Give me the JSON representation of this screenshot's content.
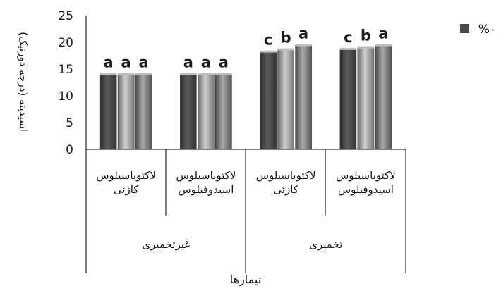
{
  "chart_data": {
    "type": "bar",
    "title": "",
    "ylabel": "اسیدیته (درجه دورنیک)",
    "xlabel": "تیمارها",
    "ylim": [
      0,
      25
    ],
    "yticks": [
      "0",
      "5",
      "10",
      "15",
      "20",
      "25"
    ],
    "grid": false,
    "legend_position": "top-right",
    "groups": [
      {
        "label": "غیرتخمیری",
        "categories": [
          {
            "lines": [
              "لاکتوباسیلوس",
              "کازئی"
            ],
            "values": [
              14,
              14,
              14
            ],
            "letters": [
              "a",
              "a",
              "a"
            ]
          },
          {
            "lines": [
              "لاکتوباسیلوس",
              "اسیدوفیلوس"
            ],
            "values": [
              14,
              14,
              14
            ],
            "letters": [
              "a",
              "a",
              "a"
            ]
          }
        ]
      },
      {
        "label": "تخمیری",
        "categories": [
          {
            "lines": [
              "لاکتوباسیلوس",
              "کازئی"
            ],
            "values": [
              18.2,
              18.6,
              19.4
            ],
            "letters": [
              "c",
              "b",
              "a"
            ]
          },
          {
            "lines": [
              "لاکتوباسیلوس",
              "اسیدوفیلوس"
            ],
            "values": [
              18.7,
              19.0,
              19.4
            ],
            "letters": [
              "c",
              "b",
              "a"
            ]
          }
        ]
      }
    ],
    "series": [
      {
        "name": "%۰",
        "color": "#4a4a4a"
      },
      {
        "name": "",
        "color": "#9a9a9a"
      },
      {
        "name": "",
        "color": "#7a7a7a"
      }
    ]
  }
}
